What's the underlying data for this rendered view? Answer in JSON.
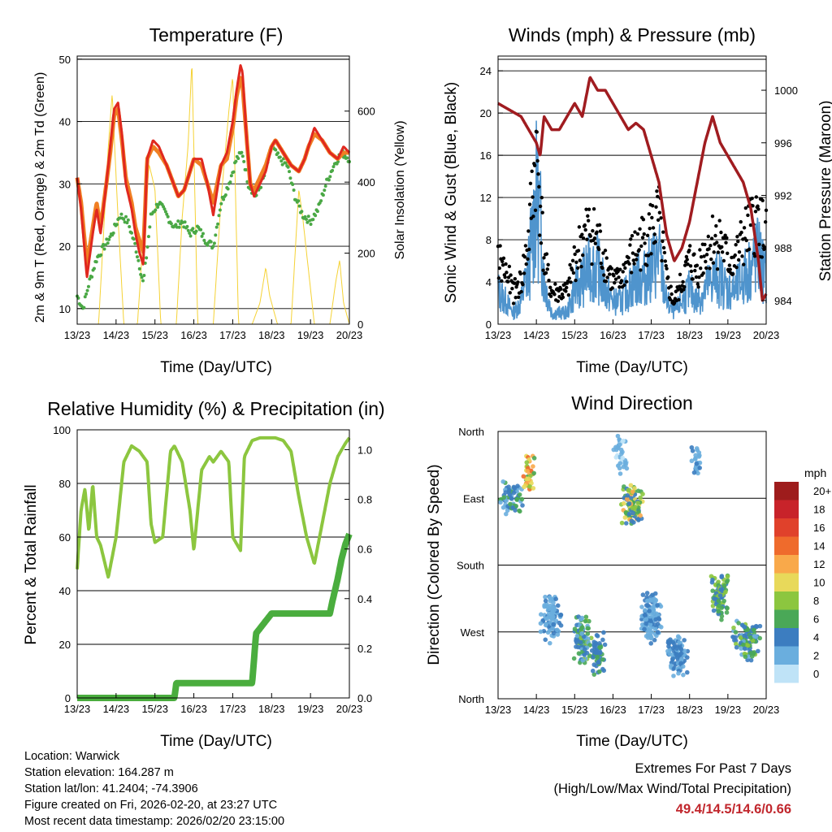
{
  "colors": {
    "temp2m": "#e0281f",
    "temp9m": "#f07f23",
    "dewpoint": "#4aa845",
    "solar": "#f5d235",
    "wind": "#4f94cd",
    "gust": "#000000",
    "pressure": "#a01c20",
    "rh": "#8cc63f",
    "precip": "#4aad3e",
    "extremes": "#c1272d"
  },
  "x_ticks": [
    "13/23",
    "14/23",
    "15/23",
    "16/23",
    "17/23",
    "18/23",
    "19/23",
    "20/23"
  ],
  "footer": {
    "location": "Location: Warwick",
    "elevation": "Station elevation: 164.287 m",
    "latlon": "Station lat/lon: 41.2404; -74.3906",
    "created": "Figure created on Fri, 2026-02-20, at 23:27 UTC",
    "recent": "Most recent data timestamp: 2026/02/20 23:15:00",
    "extremes_title": "Extremes For Past 7 Days",
    "extremes_sub": "(High/Low/Max Wind/Total Precipitation)",
    "extremes_values": "49.4/14.5/14.6/0.66"
  },
  "chart_data": [
    {
      "type": "line",
      "id": "temperature",
      "title": "Temperature (F)",
      "xlabel": "Time (Day/UTC)",
      "ylabel": "2m & 9m T (Red, Orange) & 2m Td (Green)",
      "ylabel_right": "Solar Insolation (Yellow)",
      "xlim": [
        0,
        7
      ],
      "ylim": [
        7.5,
        50.5
      ],
      "ylim_right": [
        0,
        755
      ],
      "yticks": [
        10,
        20,
        30,
        40,
        50
      ],
      "yticks_right": [
        0,
        200,
        400,
        600
      ],
      "series": [
        {
          "name": "2m T",
          "x": [
            0,
            0.1,
            0.25,
            0.4,
            0.5,
            0.6,
            0.75,
            0.85,
            0.95,
            1.05,
            1.15,
            1.25,
            1.4,
            1.5,
            1.6,
            1.7,
            1.8,
            1.95,
            2.1,
            2.3,
            2.6,
            2.75,
            2.85,
            3.0,
            3.2,
            3.35,
            3.5,
            3.7,
            3.85,
            4.0,
            4.1,
            4.2,
            4.25,
            4.35,
            4.45,
            4.55,
            4.7,
            4.85,
            5.0,
            5.1,
            5.3,
            5.5,
            5.7,
            5.85,
            5.95,
            6.1,
            6.3,
            6.5,
            6.7,
            6.85,
            7.0
          ],
          "values": [
            31,
            26,
            15,
            22,
            26,
            22,
            30,
            36,
            42,
            43,
            38,
            30,
            26,
            22,
            19,
            17,
            34,
            37,
            36,
            33,
            28,
            29,
            31,
            34,
            34,
            30,
            25,
            33,
            35,
            40,
            45,
            49,
            48,
            38,
            30,
            28,
            30,
            32,
            36,
            37,
            35,
            33,
            32,
            34,
            36,
            39,
            37,
            35,
            34,
            36,
            35
          ]
        },
        {
          "name": "9m T",
          "x": [
            0,
            0.1,
            0.25,
            0.4,
            0.5,
            0.6,
            0.75,
            0.85,
            0.95,
            1.05,
            1.15,
            1.25,
            1.4,
            1.5,
            1.6,
            1.7,
            1.8,
            1.95,
            2.1,
            2.3,
            2.6,
            2.75,
            2.85,
            3.0,
            3.2,
            3.35,
            3.5,
            3.7,
            3.85,
            4.0,
            4.1,
            4.2,
            4.25,
            4.35,
            4.45,
            4.55,
            4.7,
            4.85,
            5.0,
            5.1,
            5.3,
            5.5,
            5.7,
            5.85,
            5.95,
            6.1,
            6.3,
            6.5,
            6.7,
            6.85,
            7.0
          ],
          "values": [
            31,
            27,
            17,
            23,
            27,
            23,
            30,
            35,
            41,
            42,
            37,
            31,
            27,
            23,
            21,
            19,
            34,
            36,
            35,
            33,
            28,
            29,
            31,
            34,
            33,
            30,
            27,
            33,
            34,
            39,
            44,
            47,
            46,
            38,
            30,
            29,
            31,
            33,
            36,
            37,
            35,
            33,
            32,
            34,
            36,
            38,
            37,
            35,
            34,
            35,
            35
          ]
        },
        {
          "name": "2m Td",
          "x": [
            0,
            0.15,
            0.3,
            0.5,
            0.7,
            0.9,
            1.1,
            1.3,
            1.5,
            1.7,
            1.9,
            2.1,
            2.3,
            2.5,
            2.7,
            2.9,
            3.1,
            3.3,
            3.5,
            3.7,
            3.9,
            4.1,
            4.25,
            4.4,
            4.6,
            4.8,
            5.0,
            5.2,
            5.4,
            5.6,
            5.8,
            6.0,
            6.2,
            6.4,
            6.6,
            6.8,
            7.0
          ],
          "values": [
            12,
            10,
            14,
            18,
            20,
            22,
            25,
            24,
            20,
            14,
            25,
            27,
            25,
            23,
            24,
            22,
            23,
            21,
            20,
            27,
            30,
            34,
            35,
            30,
            28,
            31,
            36,
            34,
            33,
            28,
            25,
            24,
            26,
            30,
            33,
            35,
            34
          ]
        },
        {
          "name": "Solar",
          "axis": "right",
          "x": [
            0,
            0.55,
            0.7,
            0.8,
            0.9,
            1.05,
            1.2,
            1.55,
            1.7,
            1.85,
            2.0,
            2.15,
            2.55,
            2.7,
            2.85,
            2.95,
            3.1,
            3.5,
            3.7,
            3.9,
            4.0,
            4.15,
            4.5,
            4.7,
            4.85,
            4.95,
            5.15,
            5.5,
            5.7,
            5.8,
            5.9,
            6.1,
            6.5,
            6.65,
            6.75,
            6.85,
            7.0
          ],
          "values": [
            0,
            0,
            300,
            500,
            650,
            300,
            0,
            0,
            250,
            450,
            380,
            0,
            0,
            300,
            500,
            740,
            0,
            0,
            350,
            600,
            700,
            0,
            0,
            60,
            160,
            80,
            0,
            0,
            380,
            300,
            200,
            0,
            0,
            120,
            180,
            60,
            0
          ]
        }
      ]
    },
    {
      "type": "line",
      "id": "winds",
      "title": "Winds (mph) & Pressure (mb)",
      "xlabel": "Time (Day/UTC)",
      "ylabel": "Sonic Wind & Gust (Blue, Black)",
      "ylabel_right": "Station Pressure (Maroon)",
      "xlim": [
        0,
        7
      ],
      "ylim": [
        0,
        25.4
      ],
      "ylim_right": [
        982.2,
        1002.6
      ],
      "yticks": [
        0,
        4,
        8,
        12,
        16,
        20,
        24
      ],
      "yticks_right": [
        984,
        988,
        992,
        996,
        1000
      ],
      "series": [
        {
          "name": "Sonic Wind",
          "x": [
            0,
            0.2,
            0.4,
            0.6,
            0.8,
            0.9,
            1.0,
            1.1,
            1.2,
            1.4,
            1.6,
            1.8,
            2.0,
            2.2,
            2.4,
            2.6,
            2.8,
            3.0,
            3.2,
            3.4,
            3.6,
            3.8,
            4.0,
            4.2,
            4.4,
            4.6,
            4.8,
            5.0,
            5.2,
            5.4,
            5.6,
            5.8,
            6.0,
            6.2,
            6.4,
            6.6,
            6.8,
            7.0
          ],
          "values": [
            3,
            2,
            1,
            2,
            5,
            8,
            11,
            9,
            4,
            1,
            1,
            1,
            3,
            4,
            5,
            5,
            3,
            2,
            2,
            3,
            4,
            4,
            5,
            6,
            2,
            1,
            2,
            3,
            2,
            3,
            4,
            4,
            3,
            3,
            4,
            5,
            6,
            4
          ]
        },
        {
          "name": "Gust",
          "x": [
            0,
            0.2,
            0.4,
            0.6,
            0.8,
            0.9,
            1.0,
            1.1,
            1.2,
            1.4,
            1.6,
            1.8,
            2.0,
            2.2,
            2.4,
            2.6,
            2.8,
            3.0,
            3.2,
            3.4,
            3.6,
            3.8,
            4.0,
            4.2,
            4.4,
            4.6,
            4.8,
            5.0,
            5.2,
            5.4,
            5.6,
            5.8,
            6.0,
            6.2,
            6.4,
            6.6,
            6.8,
            7.0
          ],
          "values": [
            6,
            5,
            3,
            4,
            8,
            13,
            16,
            12,
            6,
            3,
            3,
            3,
            6,
            8,
            9,
            8,
            6,
            4,
            4,
            6,
            7,
            8,
            9,
            10,
            4,
            2,
            4,
            6,
            5,
            7,
            8,
            8,
            6,
            6,
            8,
            9,
            10,
            8
          ]
        },
        {
          "name": "Pressure",
          "axis": "right",
          "x": [
            0,
            0.3,
            0.6,
            0.8,
            1.0,
            1.1,
            1.2,
            1.4,
            1.6,
            1.8,
            2.0,
            2.2,
            2.4,
            2.6,
            2.8,
            3.0,
            3.2,
            3.4,
            3.6,
            3.8,
            4.0,
            4.2,
            4.4,
            4.6,
            4.8,
            5.0,
            5.2,
            5.4,
            5.6,
            5.8,
            6.0,
            6.2,
            6.4,
            6.6,
            6.8,
            6.9,
            7.0
          ],
          "values": [
            999,
            998.5,
            998,
            997,
            996,
            995,
            998,
            997,
            997,
            998,
            999,
            998,
            1001,
            1000,
            1000,
            999,
            998,
            997,
            997.5,
            997,
            995,
            993,
            989,
            987,
            988,
            990,
            993,
            996,
            998,
            996,
            995,
            994,
            993,
            991,
            987,
            984,
            984.5
          ]
        }
      ]
    },
    {
      "type": "line",
      "id": "humidity",
      "title": "Relative Humidity (%) & Precipitation (in)",
      "xlabel": "Time (Day/UTC)",
      "ylabel": "Percent & Total Rainfall",
      "xlim": [
        0,
        7
      ],
      "ylim": [
        0,
        100
      ],
      "ylim_right": [
        0,
        1.08
      ],
      "yticks": [
        0,
        20,
        40,
        60,
        80,
        100
      ],
      "yticks_right": [
        0.0,
        0.2,
        0.4,
        0.6,
        0.8,
        1.0
      ],
      "series": [
        {
          "name": "RH",
          "x": [
            0,
            0.1,
            0.2,
            0.3,
            0.4,
            0.5,
            0.6,
            0.8,
            1.0,
            1.2,
            1.4,
            1.6,
            1.8,
            1.9,
            2.0,
            2.2,
            2.4,
            2.5,
            2.7,
            2.9,
            3.0,
            3.2,
            3.4,
            3.5,
            3.7,
            3.9,
            4.0,
            4.2,
            4.3,
            4.5,
            4.7,
            4.9,
            5.1,
            5.3,
            5.5,
            5.7,
            5.9,
            6.1,
            6.3,
            6.5,
            6.7,
            6.9,
            7.0
          ],
          "values": [
            48,
            70,
            78,
            62,
            80,
            60,
            57,
            45,
            60,
            88,
            94,
            92,
            88,
            65,
            58,
            60,
            92,
            94,
            88,
            70,
            55,
            85,
            90,
            88,
            92,
            88,
            60,
            55,
            90,
            96,
            97,
            97,
            97,
            96,
            92,
            75,
            60,
            50,
            65,
            80,
            90,
            95,
            97
          ]
        },
        {
          "name": "Precip",
          "axis": "right",
          "x": [
            0,
            2.5,
            2.55,
            3.0,
            3.5,
            4.0,
            4.5,
            4.55,
            4.6,
            5.0,
            5.5,
            6.0,
            6.5,
            6.55,
            6.7,
            6.8,
            6.9,
            7.0
          ],
          "values": [
            0,
            0,
            0.06,
            0.06,
            0.06,
            0.06,
            0.06,
            0.16,
            0.26,
            0.34,
            0.34,
            0.34,
            0.34,
            0.38,
            0.48,
            0.56,
            0.62,
            0.66
          ]
        }
      ]
    },
    {
      "type": "scatter",
      "id": "wind-direction",
      "title": "Wind Direction",
      "xlabel": "Time (Day/UTC)",
      "ylabel": "Direction (Colored By Speed)",
      "xlim": [
        0,
        7
      ],
      "ylim": [
        0,
        360
      ],
      "yticklabels": [
        "North",
        "West",
        "South",
        "East",
        "North"
      ],
      "legend": {
        "unit": "mph",
        "labels": [
          "20+",
          "18",
          "16",
          "14",
          "12",
          "10",
          "8",
          "6",
          "4",
          "2",
          "0"
        ],
        "colors": [
          "#9e1c1c",
          "#c8232a",
          "#e0412b",
          "#ef6b2c",
          "#f9a94a",
          "#e8d95a",
          "#8cc63f",
          "#4aa857",
          "#3c7dc0",
          "#6aaede",
          "#bfe3f7"
        ]
      },
      "clusters": [
        {
          "xc": 0.35,
          "dir": 270,
          "spread": 0.35,
          "dspread": 25,
          "count": 70,
          "speeds": [
            2,
            6
          ]
        },
        {
          "xc": 0.8,
          "dir": 300,
          "spread": 0.15,
          "dspread": 30,
          "count": 40,
          "speeds": [
            6,
            14
          ]
        },
        {
          "xc": 1.4,
          "dir": 110,
          "spread": 0.3,
          "dspread": 40,
          "count": 90,
          "speeds": [
            1,
            4
          ]
        },
        {
          "xc": 2.2,
          "dir": 80,
          "spread": 0.25,
          "dspread": 35,
          "count": 110,
          "speeds": [
            2,
            8
          ]
        },
        {
          "xc": 2.6,
          "dir": 60,
          "spread": 0.2,
          "dspread": 35,
          "count": 60,
          "speeds": [
            3,
            6
          ]
        },
        {
          "xc": 3.2,
          "dir": 330,
          "spread": 0.2,
          "dspread": 30,
          "count": 40,
          "speeds": [
            0,
            3
          ]
        },
        {
          "xc": 3.5,
          "dir": 260,
          "spread": 0.3,
          "dspread": 30,
          "count": 110,
          "speeds": [
            3,
            12
          ]
        },
        {
          "xc": 4.0,
          "dir": 110,
          "spread": 0.3,
          "dspread": 40,
          "count": 120,
          "speeds": [
            1,
            5
          ]
        },
        {
          "xc": 4.7,
          "dir": 60,
          "spread": 0.3,
          "dspread": 30,
          "count": 90,
          "speeds": [
            1,
            5
          ]
        },
        {
          "xc": 5.2,
          "dir": 320,
          "spread": 0.2,
          "dspread": 30,
          "count": 25,
          "speeds": [
            1,
            4
          ]
        },
        {
          "xc": 5.8,
          "dir": 140,
          "spread": 0.25,
          "dspread": 35,
          "count": 80,
          "speeds": [
            3,
            9
          ]
        },
        {
          "xc": 6.5,
          "dir": 80,
          "spread": 0.4,
          "dspread": 30,
          "count": 110,
          "speeds": [
            2,
            8
          ]
        }
      ]
    }
  ]
}
